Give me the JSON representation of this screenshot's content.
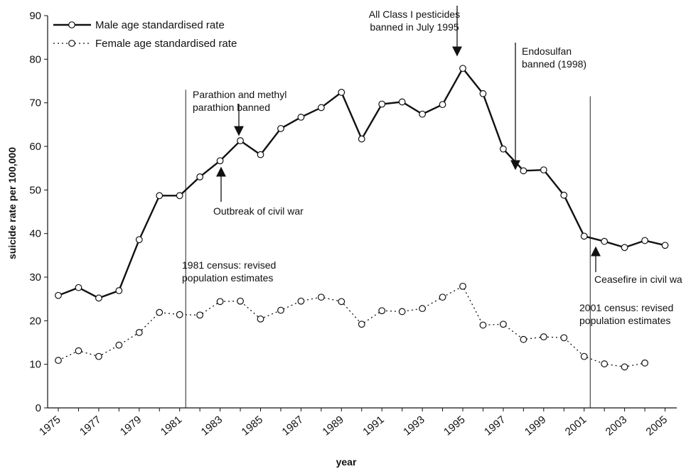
{
  "chart_data": {
    "type": "line",
    "title": "",
    "xlabel": "year",
    "ylabel": "suicide rate per 100,000",
    "xlim": [
      1975,
      2006
    ],
    "ylim": [
      0,
      90
    ],
    "yticks": [
      0,
      10,
      20,
      30,
      40,
      50,
      60,
      70,
      80,
      90
    ],
    "xticks": [
      "1975",
      "1977",
      "1979",
      "1981",
      "1983",
      "1985",
      "1987",
      "1989",
      "1991",
      "1993",
      "1995",
      "1997",
      "1999",
      "2001",
      "2003",
      "2005"
    ],
    "grid": false,
    "legend_position": "top-left",
    "series": [
      {
        "name": "Male age standardised rate",
        "style": "solid",
        "color": "#111111",
        "x": [
          1975,
          1976,
          1977,
          1978,
          1979,
          1980,
          1981,
          1982,
          1983,
          1984,
          1985,
          1986,
          1987,
          1988,
          1989,
          1990,
          1991,
          1992,
          1993,
          1994,
          1995,
          1996,
          1997,
          1998,
          1999,
          2000,
          2001,
          2002,
          2003,
          2004,
          2005
        ],
        "values": [
          25.8,
          27.6,
          25.2,
          26.9,
          38.6,
          48.7,
          48.7,
          53.0,
          56.7,
          61.3,
          58.1,
          64.1,
          66.7,
          68.9,
          72.4,
          61.7,
          69.7,
          70.2,
          67.4,
          69.6,
          77.9,
          72.1,
          59.4,
          54.4,
          54.6,
          48.8,
          39.4,
          38.2,
          36.8,
          38.4,
          37.3
        ]
      },
      {
        "name": "Female age standardised rate",
        "style": "dotted",
        "color": "#111111",
        "x": [
          1975,
          1976,
          1977,
          1978,
          1979,
          1980,
          1981,
          1982,
          1983,
          1984,
          1985,
          1986,
          1987,
          1988,
          1989,
          1990,
          1991,
          1992,
          1993,
          1994,
          1995,
          1996,
          1997,
          1998,
          1999,
          2000,
          2001,
          2002,
          2003,
          2004
        ],
        "values": [
          10.9,
          13.1,
          11.8,
          14.4,
          17.3,
          21.9,
          21.4,
          21.3,
          24.4,
          24.5,
          20.4,
          22.4,
          24.5,
          25.4,
          24.4,
          19.2,
          22.3,
          22.1,
          22.8,
          25.4,
          27.9,
          19.0,
          19.2,
          15.7,
          16.3,
          16.1,
          11.8,
          10.1,
          9.4,
          10.3
        ]
      }
    ],
    "reference_lines": [
      {
        "x": 1981.3,
        "from": 0,
        "to": 73
      },
      {
        "x": 2001.3,
        "from": 0,
        "to": 71.5
      }
    ],
    "annotations": [
      {
        "lines": [
          "Parathion and methyl",
          "parathion banned"
        ],
        "arrow": "down",
        "arrow_x": 1984
      },
      {
        "lines": [
          "Outbreak of civil war"
        ],
        "arrow": "up",
        "arrow_x": 1983
      },
      {
        "lines": [
          "All Class I pesticides",
          "banned in July 1995"
        ],
        "arrow": "down",
        "arrow_x": 1995.4
      },
      {
        "lines": [
          "Endosulfan",
          "banned (1998)"
        ],
        "arrow": "down",
        "arrow_x": 1998
      },
      {
        "lines": [
          "Ceasefire in civil wa"
        ],
        "arrow": "up",
        "arrow_x": 2002.7
      },
      {
        "lines": [
          "1981 census: revised",
          "population estimates"
        ],
        "arrow": "none"
      },
      {
        "lines": [
          "2001 census: revised",
          "population estimates"
        ],
        "arrow": "none"
      }
    ]
  }
}
